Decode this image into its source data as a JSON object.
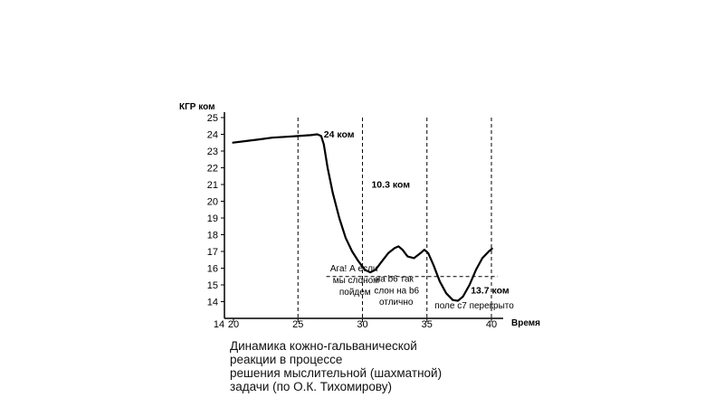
{
  "chart_data": {
    "type": "line",
    "ylabel": "КГР ком",
    "xlabel": "Время",
    "ylim": [
      13,
      25
    ],
    "xlim": [
      20,
      40
    ],
    "y_ticks": [
      14,
      15,
      16,
      17,
      18,
      19,
      20,
      21,
      22,
      23,
      24,
      25
    ],
    "x_ticks": [
      20,
      25,
      30,
      35,
      40
    ],
    "x_origin_label": "14",
    "grid": false,
    "series": [
      {
        "values": [
          [
            19.9,
            23.5
          ],
          [
            21,
            23.6
          ],
          [
            22,
            23.7
          ],
          [
            23,
            23.8
          ],
          [
            24,
            23.85
          ],
          [
            25,
            23.9
          ],
          [
            26,
            23.95
          ],
          [
            26.5,
            24.0
          ],
          [
            26.8,
            23.9
          ],
          [
            27.0,
            23.4
          ],
          [
            27.3,
            22.0
          ],
          [
            27.7,
            20.5
          ],
          [
            28.2,
            19.0
          ],
          [
            28.7,
            17.8
          ],
          [
            29.2,
            17.0
          ],
          [
            29.7,
            16.4
          ],
          [
            30.2,
            15.9
          ],
          [
            30.6,
            15.75
          ],
          [
            31.0,
            15.9
          ],
          [
            31.5,
            16.4
          ],
          [
            32.0,
            16.9
          ],
          [
            32.5,
            17.2
          ],
          [
            32.8,
            17.3
          ],
          [
            33.1,
            17.1
          ],
          [
            33.5,
            16.7
          ],
          [
            34.0,
            16.6
          ],
          [
            34.5,
            16.9
          ],
          [
            34.8,
            17.1
          ],
          [
            35.1,
            16.9
          ],
          [
            35.5,
            16.2
          ],
          [
            36.0,
            15.2
          ],
          [
            36.5,
            14.5
          ],
          [
            37.0,
            14.1
          ],
          [
            37.4,
            14.05
          ],
          [
            37.8,
            14.3
          ],
          [
            38.3,
            15.0
          ],
          [
            38.8,
            15.9
          ],
          [
            39.3,
            16.6
          ],
          [
            39.8,
            17.0
          ],
          [
            40.1,
            17.2
          ]
        ]
      }
    ],
    "vertical_markers": [
      {
        "x": 25,
        "style": "dashed"
      },
      {
        "x": 30,
        "style": "dashed"
      },
      {
        "x": 35,
        "style": "dashed"
      },
      {
        "x": 40,
        "style": "dashed"
      }
    ],
    "horizontal_marker": {
      "y": 15.5,
      "x_from": 27.2,
      "x_to": 40.5
    },
    "annotations": [
      {
        "text": "24 ком",
        "x": 27.0,
        "y": 23.8,
        "bold": true
      },
      {
        "text": "10.3 ком",
        "x": 30.7,
        "y": 20.8,
        "bold": true
      },
      {
        "text": "13.7 ком",
        "x": 38.4,
        "y": 14.5,
        "bold": true
      },
      {
        "text": "Ага! А если",
        "x": 27.5,
        "y": 15.8,
        "bold": false
      },
      {
        "text": "мы слоном",
        "x": 27.7,
        "y": 15.1,
        "bold": false
      },
      {
        "text": "пойдем",
        "x": 28.2,
        "y": 14.4,
        "bold": false
      },
      {
        "text": "на b6 так",
        "x": 31.0,
        "y": 15.2,
        "bold": false
      },
      {
        "text": "слон на b6",
        "x": 30.9,
        "y": 14.5,
        "bold": false
      },
      {
        "text": "отлично",
        "x": 31.3,
        "y": 13.8,
        "bold": false
      },
      {
        "text": "поле с7 перекрыто",
        "x": 35.6,
        "y": 13.6,
        "bold": false
      }
    ]
  },
  "caption": {
    "lines": [
      "Динамика кожно-гальванической",
      "реакции в процессе",
      "решения мыслительной (шахматной)",
      "задачи (по О.К. Тихомирову)"
    ]
  }
}
